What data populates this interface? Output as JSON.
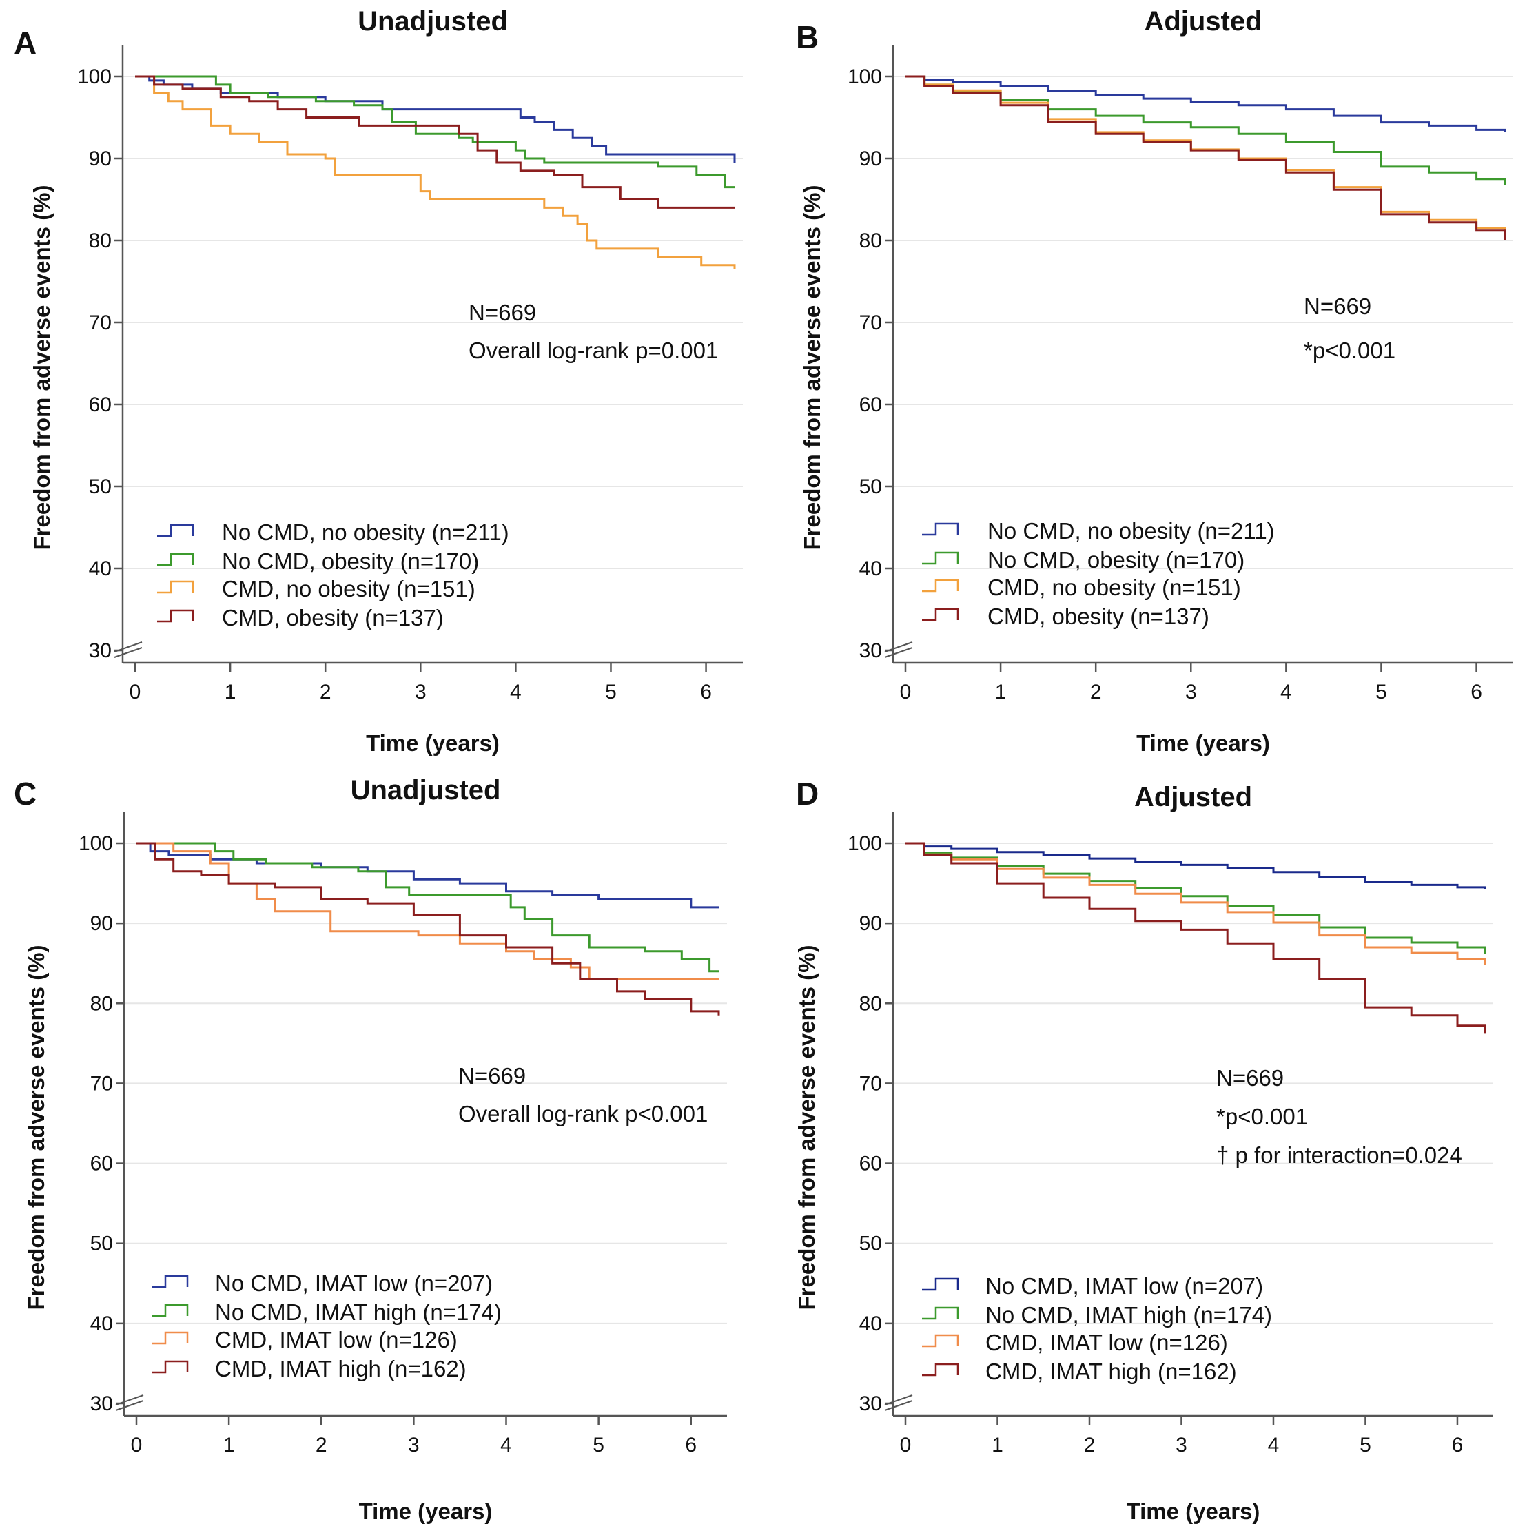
{
  "chart_data": [
    {
      "id": "A",
      "letter": "A",
      "type": "line",
      "step": true,
      "title": "Unadjusted",
      "xlabel": "Time (years)",
      "ylabel": "Freedom from adverse events (%)",
      "xlim": [
        0,
        6.3
      ],
      "ylim": [
        30,
        100
      ],
      "xticks": [
        0,
        1,
        2,
        3,
        4,
        5,
        6
      ],
      "yticks": [
        30,
        40,
        50,
        60,
        70,
        80,
        90,
        100
      ],
      "grid": true,
      "legend_position": "lower-left",
      "annotations": [
        "N=669",
        "Overall log-rank p=0.001"
      ],
      "series": [
        {
          "name": "No CMD, no obesity (n=211)",
          "color": "#2a3a9c",
          "x": [
            0,
            0.15,
            0.3,
            0.6,
            0.9,
            1.5,
            2.0,
            2.6,
            3.8,
            4.05,
            4.2,
            4.4,
            4.6,
            4.8,
            4.95,
            6.3
          ],
          "y": [
            100,
            99.5,
            99.0,
            98.5,
            98.0,
            97.5,
            97.0,
            96.0,
            96.0,
            95.0,
            94.5,
            93.5,
            92.5,
            91.5,
            90.5,
            89.5
          ]
        },
        {
          "name": "No CMD, obesity (n=170)",
          "color": "#3c9a2d",
          "x": [
            0,
            0.85,
            1.0,
            1.4,
            1.9,
            2.3,
            2.6,
            2.7,
            2.95,
            3.4,
            3.55,
            4.0,
            4.1,
            4.3,
            4.9,
            5.5,
            5.9,
            6.2,
            6.3
          ],
          "y": [
            100,
            99.0,
            98.0,
            97.5,
            97.0,
            96.5,
            96.0,
            94.5,
            93.0,
            92.5,
            92.0,
            91.0,
            90.0,
            89.5,
            89.5,
            89.0,
            88.0,
            86.5,
            86.5
          ]
        },
        {
          "name": "CMD, no obesity (n=151)",
          "color": "#f2a13d",
          "x": [
            0,
            0.2,
            0.35,
            0.5,
            0.8,
            1.0,
            1.3,
            1.6,
            2.0,
            2.1,
            3.0,
            3.1,
            4.0,
            4.3,
            4.5,
            4.65,
            4.75,
            4.85,
            5.5,
            5.95,
            6.3
          ],
          "y": [
            100,
            98.0,
            97.0,
            96.0,
            94.0,
            93.0,
            92.0,
            90.5,
            90.0,
            88.0,
            86.0,
            85.0,
            85.0,
            84.0,
            83.0,
            82.0,
            80.0,
            79.0,
            78.0,
            77.0,
            76.5
          ]
        },
        {
          "name": "CMD, obesity (n=137)",
          "color": "#8b1e1e",
          "x": [
            0,
            0.2,
            0.5,
            0.9,
            1.2,
            1.5,
            1.8,
            2.35,
            3.4,
            3.6,
            3.8,
            4.05,
            4.4,
            4.7,
            5.1,
            5.5,
            6.3
          ],
          "y": [
            100,
            99.0,
            98.5,
            97.5,
            97.0,
            96.0,
            95.0,
            94.0,
            93.0,
            91.0,
            89.5,
            88.5,
            88.0,
            86.5,
            85.0,
            84.0,
            84.0
          ]
        }
      ]
    },
    {
      "id": "B",
      "letter": "B",
      "type": "line",
      "step": true,
      "title": "Adjusted",
      "xlabel": "Time (years)",
      "ylabel": "Freedom from adverse events (%)",
      "xlim": [
        0,
        6.3
      ],
      "ylim": [
        30,
        100
      ],
      "xticks": [
        0,
        1,
        2,
        3,
        4,
        5,
        6
      ],
      "yticks": [
        30,
        40,
        50,
        60,
        70,
        80,
        90,
        100
      ],
      "grid": true,
      "legend_position": "lower-left",
      "annotations": [
        "N=669",
        "*p<0.001"
      ],
      "series": [
        {
          "name": "No CMD, no obesity (n=211)",
          "color": "#2a3a9c",
          "x": [
            0,
            0.2,
            0.5,
            1.0,
            1.5,
            2.0,
            2.5,
            3.0,
            3.5,
            4.0,
            4.5,
            5.0,
            5.5,
            6.0,
            6.3
          ],
          "y": [
            100,
            99.6,
            99.3,
            98.8,
            98.2,
            97.7,
            97.3,
            96.9,
            96.5,
            96.0,
            95.2,
            94.4,
            94.0,
            93.5,
            93.2
          ]
        },
        {
          "name": "No CMD, obesity (n=170)",
          "color": "#3c9a2d",
          "x": [
            0,
            0.2,
            0.5,
            1.0,
            1.5,
            2.0,
            2.5,
            3.0,
            3.5,
            4.0,
            4.5,
            5.0,
            5.5,
            6.0,
            6.3
          ],
          "y": [
            100,
            99.0,
            98.2,
            97.1,
            96.0,
            95.2,
            94.4,
            93.8,
            93.0,
            92.0,
            90.8,
            89.0,
            88.3,
            87.5,
            86.8
          ]
        },
        {
          "name": "CMD, no obesity (n=151)",
          "color": "#f2a13d",
          "x": [
            0,
            0.2,
            0.5,
            1.0,
            1.5,
            2.0,
            2.5,
            3.0,
            3.5,
            4.0,
            4.5,
            5.0,
            5.5,
            6.0,
            6.3
          ],
          "y": [
            100,
            99.0,
            98.3,
            96.8,
            94.8,
            93.2,
            92.2,
            91.1,
            90.0,
            88.6,
            86.5,
            83.5,
            82.5,
            81.5,
            80.2
          ]
        },
        {
          "name": "CMD, obesity (n=137)",
          "color": "#8b1e1e",
          "x": [
            0,
            0.2,
            0.5,
            1.0,
            1.5,
            2.0,
            2.5,
            3.0,
            3.5,
            4.0,
            4.5,
            5.0,
            5.5,
            6.0,
            6.3
          ],
          "y": [
            100,
            98.8,
            98.0,
            96.5,
            94.5,
            93.0,
            92.0,
            91.0,
            89.8,
            88.3,
            86.2,
            83.2,
            82.2,
            81.2,
            80.0
          ]
        }
      ]
    },
    {
      "id": "C",
      "letter": "C",
      "type": "line",
      "step": true,
      "title": "Unadjusted",
      "xlabel": "Time (years)",
      "ylabel": "Freedom from adverse events (%)",
      "xlim": [
        0,
        6.3
      ],
      "ylim": [
        30,
        100
      ],
      "xticks": [
        0,
        1,
        2,
        3,
        4,
        5,
        6
      ],
      "yticks": [
        30,
        40,
        50,
        60,
        70,
        80,
        90,
        100
      ],
      "grid": true,
      "legend_position": "lower-left",
      "annotations": [
        "N=669",
        "Overall log-rank p<0.001"
      ],
      "series": [
        {
          "name": "No CMD, IMAT low (n=207)",
          "color": "#2a3a9c",
          "x": [
            0,
            0.15,
            0.35,
            0.8,
            1.3,
            2.0,
            2.5,
            3.0,
            3.5,
            4.0,
            4.5,
            5.0,
            5.5,
            5.8,
            6.0,
            6.3
          ],
          "y": [
            100,
            99.0,
            98.5,
            98.0,
            97.5,
            97.0,
            96.5,
            95.5,
            95.0,
            94.0,
            93.5,
            93.0,
            93.0,
            93.0,
            92.0,
            92.0
          ]
        },
        {
          "name": "No CMD, IMAT high (n=174)",
          "color": "#3c9a2d",
          "x": [
            0,
            0.5,
            0.85,
            1.05,
            1.4,
            1.9,
            2.4,
            2.7,
            2.95,
            3.5,
            4.05,
            4.2,
            4.5,
            4.9,
            5.5,
            5.9,
            6.2,
            6.3
          ],
          "y": [
            100,
            100,
            99.0,
            98.0,
            97.5,
            97.0,
            96.5,
            94.5,
            93.5,
            93.5,
            92.0,
            90.5,
            88.5,
            87.0,
            86.5,
            85.5,
            84.0,
            84.0
          ]
        },
        {
          "name": "CMD, IMAT low (n=126)",
          "color": "#f08c4a",
          "x": [
            0,
            0.4,
            0.8,
            1.0,
            1.3,
            1.5,
            2.1,
            3.05,
            3.5,
            4.0,
            4.3,
            4.7,
            4.9,
            6.3
          ],
          "y": [
            100,
            99.0,
            97.5,
            95.0,
            93.0,
            91.5,
            89.0,
            88.5,
            87.5,
            86.5,
            85.5,
            84.5,
            83.0,
            83.0
          ]
        },
        {
          "name": "CMD, IMAT high (n=162)",
          "color": "#8b1e1e",
          "x": [
            0,
            0.2,
            0.4,
            0.7,
            1.0,
            1.5,
            2.0,
            2.5,
            3.0,
            3.5,
            4.0,
            4.5,
            4.8,
            5.2,
            5.5,
            6.0,
            6.3
          ],
          "y": [
            100,
            98.0,
            96.5,
            96.0,
            95.0,
            94.5,
            93.0,
            92.5,
            91.0,
            88.5,
            87.0,
            85.0,
            83.0,
            81.5,
            80.5,
            79.0,
            78.5
          ]
        }
      ]
    },
    {
      "id": "D",
      "letter": "D",
      "type": "line",
      "step": true,
      "title": "Adjusted",
      "xlabel": "Time (years)",
      "ylabel": "Freedom from adverse events (%)",
      "xlim": [
        0,
        6.3
      ],
      "ylim": [
        30,
        100
      ],
      "xticks": [
        0,
        1,
        2,
        3,
        4,
        5,
        6
      ],
      "yticks": [
        30,
        40,
        50,
        60,
        70,
        80,
        90,
        100
      ],
      "grid": true,
      "legend_position": "lower-left",
      "annotations": [
        "N=669",
        "*p<0.001",
        "† p for interaction=0.024"
      ],
      "series": [
        {
          "name": "No CMD, IMAT low (n=207)",
          "color": "#1a2a8c",
          "x": [
            0,
            0.2,
            0.5,
            1.0,
            1.5,
            2.0,
            2.5,
            3.0,
            3.5,
            4.0,
            4.5,
            5.0,
            5.5,
            6.0,
            6.3
          ],
          "y": [
            100,
            99.6,
            99.3,
            98.9,
            98.5,
            98.1,
            97.7,
            97.3,
            96.9,
            96.4,
            95.8,
            95.2,
            94.8,
            94.5,
            94.3
          ]
        },
        {
          "name": "No CMD, IMAT high (n=174)",
          "color": "#3c9a2d",
          "x": [
            0,
            0.2,
            0.5,
            1.0,
            1.5,
            2.0,
            2.5,
            3.0,
            3.5,
            4.0,
            4.5,
            5.0,
            5.5,
            6.0,
            6.3
          ],
          "y": [
            100,
            98.8,
            98.2,
            97.2,
            96.2,
            95.3,
            94.4,
            93.4,
            92.2,
            91.0,
            89.5,
            88.2,
            87.6,
            87.0,
            86.2
          ]
        },
        {
          "name": "CMD, IMAT low (n=126)",
          "color": "#f08c4a",
          "x": [
            0,
            0.2,
            0.5,
            1.0,
            1.5,
            2.0,
            2.5,
            3.0,
            3.5,
            4.0,
            4.5,
            5.0,
            5.5,
            6.0,
            6.3
          ],
          "y": [
            100,
            98.6,
            98.0,
            96.8,
            95.7,
            94.8,
            93.7,
            92.6,
            91.4,
            90.1,
            88.5,
            87.0,
            86.3,
            85.5,
            84.8
          ]
        },
        {
          "name": "CMD, IMAT high (n=162)",
          "color": "#8b1e1e",
          "x": [
            0,
            0.2,
            0.5,
            1.0,
            1.5,
            2.0,
            2.5,
            3.0,
            3.5,
            4.0,
            4.5,
            5.0,
            5.5,
            6.0,
            6.3
          ],
          "y": [
            100,
            98.5,
            97.5,
            95.0,
            93.2,
            91.8,
            90.3,
            89.2,
            87.5,
            85.5,
            83.0,
            79.5,
            78.5,
            77.2,
            76.2
          ]
        }
      ]
    }
  ]
}
